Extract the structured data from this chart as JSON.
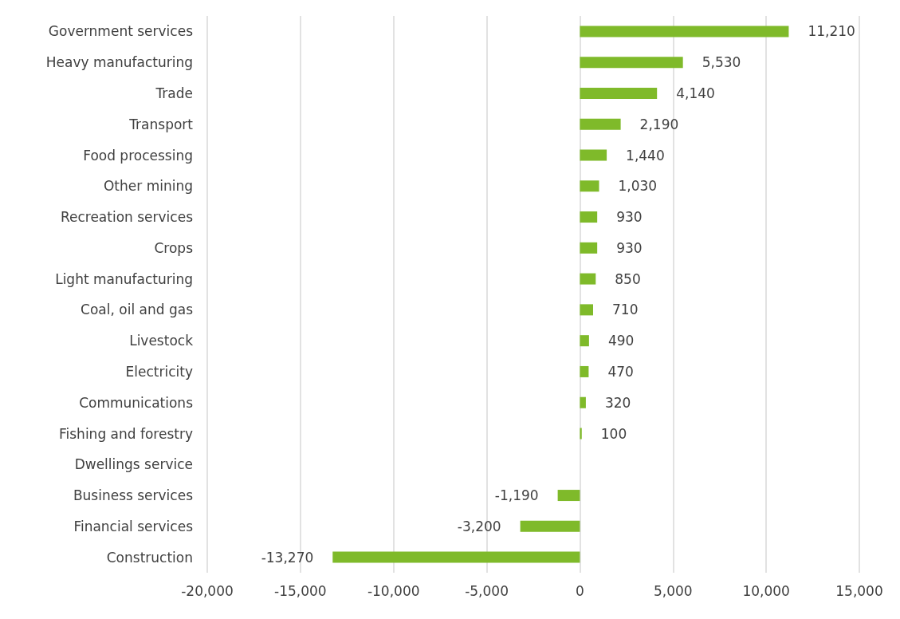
{
  "chart_data": {
    "type": "bar",
    "orientation": "horizontal",
    "categories": [
      "Government services",
      "Heavy manufacturing",
      "Trade",
      "Transport",
      "Food processing",
      "Other mining",
      "Recreation services",
      "Crops",
      "Light manufacturing",
      "Coal, oil and gas",
      "Livestock",
      "Electricity",
      "Communications",
      "Fishing and forestry",
      "Dwellings service",
      "Business services",
      "Financial services",
      "Construction"
    ],
    "values": [
      11210,
      5530,
      4140,
      2190,
      1440,
      1030,
      930,
      930,
      850,
      710,
      490,
      470,
      320,
      100,
      null,
      -1190,
      -3200,
      -13270
    ],
    "value_labels": [
      "11,210",
      "5,530",
      "4,140",
      "2,190",
      "1,440",
      "1,030",
      "930",
      "930",
      "850",
      "710",
      "490",
      "470",
      "320",
      "100",
      null,
      "-1,190",
      "-3,200",
      "-13,270"
    ],
    "color": "#7fba2a",
    "xlim": [
      -20000,
      15000
    ],
    "xticks": [
      {
        "value": -20000,
        "label": "-20,000"
      },
      {
        "value": -15000,
        "label": "-15,000"
      },
      {
        "value": -10000,
        "label": "-10,000"
      },
      {
        "value": -5000,
        "label": "-5,000"
      },
      0,
      {
        "value": 5000,
        "label": "5,000"
      },
      {
        "value": 10000,
        "label": "10,000"
      },
      {
        "value": 15000,
        "label": "15,000"
      }
    ],
    "grid": "x"
  }
}
